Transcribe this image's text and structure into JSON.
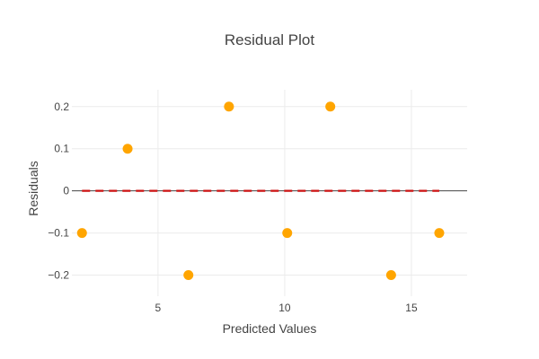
{
  "chart_data": {
    "type": "scatter",
    "title": "Residual Plot",
    "xlabel": "Predicted Values",
    "ylabel": "Residuals",
    "xlim": [
      1.6,
      17.2
    ],
    "ylim": [
      -0.25,
      0.24
    ],
    "xticks": [
      5,
      10,
      15
    ],
    "yticks": [
      -0.2,
      -0.1,
      0,
      0.1,
      0.2
    ],
    "ytick_labels": [
      "−0.2",
      "−0.1",
      "0",
      "0.1",
      "0.2"
    ],
    "grid": true,
    "series": [
      {
        "x": [
          2.0,
          3.8,
          6.2,
          7.8,
          10.1,
          11.8,
          14.2,
          16.1
        ],
        "y": [
          -0.1,
          0.1,
          -0.2,
          0.2,
          -0.1,
          0.2,
          -0.2,
          -0.1
        ],
        "color": "#FFA500"
      }
    ],
    "reference_line": {
      "y": 0,
      "x": [
        2.0,
        16.1
      ],
      "style": "dashed",
      "color": "#CC1111"
    }
  }
}
